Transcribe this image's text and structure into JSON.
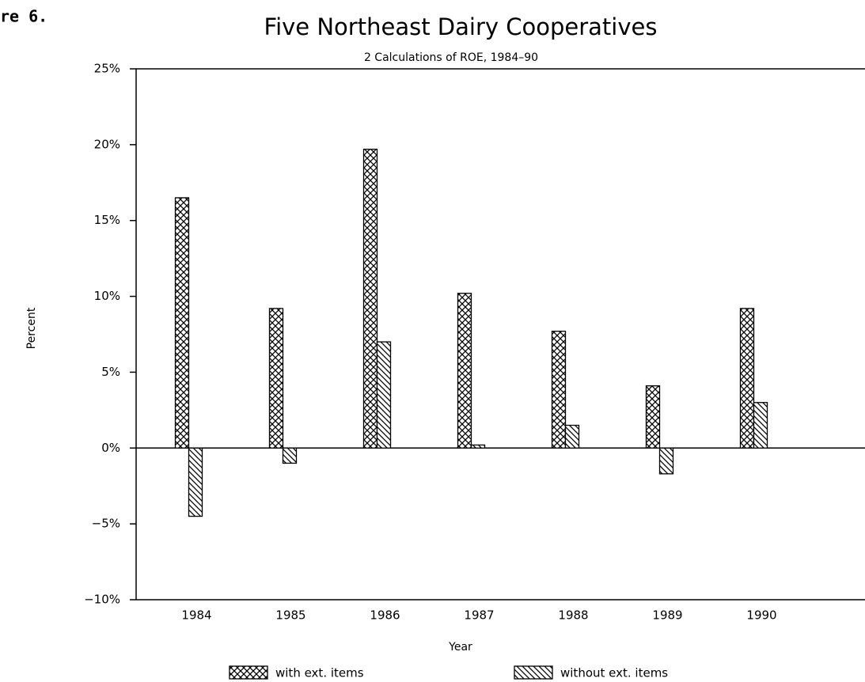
{
  "chart_data": {
    "type": "bar",
    "figure_label": "re 6.",
    "title": "Five Northeast Dairy Cooperatives",
    "subtitle": "2 Calculations of ROE, 1984–90",
    "x_label": "Year",
    "y_label": "Percent",
    "categories": [
      "1984",
      "1985",
      "1986",
      "1987",
      "1988",
      "1989",
      "1990"
    ],
    "series": [
      {
        "name": "with ext. items",
        "color": "#000000",
        "pattern": "crosshatch",
        "values": [
          16.5,
          9.2,
          19.7,
          10.2,
          7.7,
          4.1,
          9.2
        ]
      },
      {
        "name": "without ext. items",
        "color": "#000000",
        "pattern": "diagonal",
        "values": [
          -4.5,
          -1.0,
          7.0,
          0.2,
          1.5,
          -1.7,
          3.0
        ]
      }
    ],
    "ylim": [
      -10,
      25
    ],
    "yticks": [
      {
        "value": -10,
        "label": "−10%"
      },
      {
        "value": -5,
        "label": "−5%"
      },
      {
        "value": 0,
        "label": "0%"
      },
      {
        "value": 5,
        "label": "5%"
      },
      {
        "value": 10,
        "label": "10%"
      },
      {
        "value": 15,
        "label": "15%"
      },
      {
        "value": 20,
        "label": "20%"
      },
      {
        "value": 25,
        "label": "25%"
      }
    ]
  }
}
